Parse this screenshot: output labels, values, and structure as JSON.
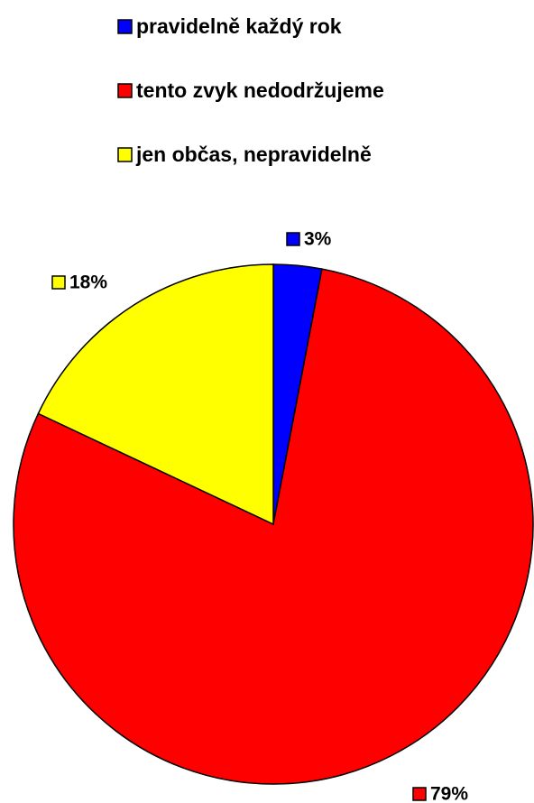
{
  "chart_data": {
    "type": "pie",
    "categories": [
      "pravidelně každý rok",
      "tento zvyk nedodržujeme",
      "jen občas, nepravidelně"
    ],
    "values": [
      3,
      79,
      18
    ],
    "value_labels": [
      "3%",
      "79%",
      "18%"
    ],
    "colors": [
      "#0000ff",
      "#ff0000",
      "#ffff00"
    ],
    "legend": "top"
  }
}
